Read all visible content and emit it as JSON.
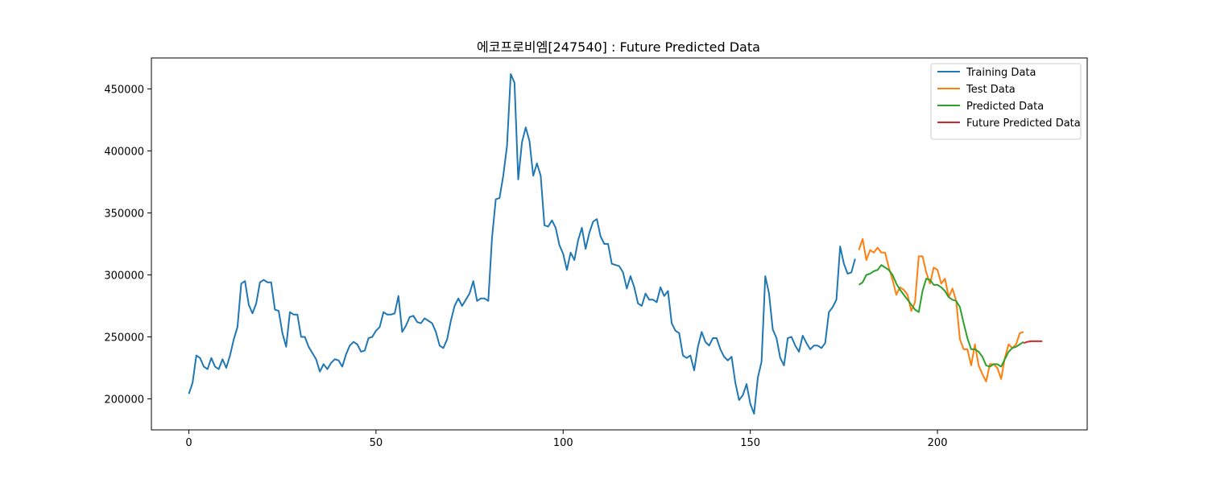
{
  "chart_data": {
    "type": "line",
    "title": "에코프로비엠[247540] : Future Predicted Data",
    "xlabel": "",
    "ylabel": "",
    "xlim": [
      -10,
      240
    ],
    "ylim": [
      175000,
      475000
    ],
    "xticks": [
      0,
      50,
      100,
      150,
      200
    ],
    "yticks": [
      200000,
      250000,
      300000,
      350000,
      400000,
      450000
    ],
    "grid": false,
    "legend_position": "top-right",
    "series": [
      {
        "name": "Training Data",
        "color": "#1f77b4",
        "x_start": 0,
        "values": [
          204000,
          213000,
          235000,
          233000,
          226000,
          224000,
          233000,
          226000,
          224000,
          232000,
          225000,
          235000,
          248000,
          258000,
          293000,
          295000,
          276000,
          269000,
          277000,
          294000,
          296000,
          294000,
          294000,
          272000,
          271000,
          253000,
          242000,
          270000,
          268000,
          268000,
          250000,
          250000,
          242000,
          237000,
          232000,
          222000,
          228000,
          224000,
          229000,
          232000,
          231000,
          226000,
          236000,
          243000,
          246000,
          244000,
          238000,
          239000,
          249000,
          250000,
          255000,
          258000,
          270000,
          268000,
          268000,
          269000,
          283000,
          254000,
          259000,
          266000,
          267000,
          262000,
          261000,
          265000,
          263000,
          261000,
          254000,
          243000,
          241000,
          248000,
          263000,
          275000,
          281000,
          275000,
          280000,
          285000,
          295000,
          279000,
          281000,
          281000,
          279000,
          330000,
          361000,
          362000,
          380000,
          404000,
          462000,
          455000,
          377000,
          407000,
          419000,
          408000,
          380000,
          390000,
          380000,
          340000,
          339000,
          344000,
          338000,
          324000,
          317000,
          304000,
          318000,
          312000,
          328000,
          338000,
          321000,
          334000,
          343000,
          345000,
          331000,
          325000,
          325000,
          309000,
          308000,
          307000,
          302000,
          289000,
          299000,
          290000,
          277000,
          275000,
          285000,
          280000,
          280000,
          278000,
          290000,
          283000,
          287000,
          261000,
          255000,
          253000,
          235000,
          233000,
          235000,
          223000,
          242000,
          254000,
          246000,
          243000,
          249000,
          249000,
          240000,
          234000,
          231000,
          234000,
          213000,
          199000,
          203000,
          212000,
          196000,
          188000,
          217000,
          230000,
          299000,
          285000,
          256000,
          249000,
          233000,
          227000,
          249000,
          250000,
          243000,
          238000,
          251000,
          245000,
          240000,
          243000,
          243000,
          241000,
          245000,
          270000,
          274000,
          280000,
          323000,
          309000,
          301000,
          302000,
          313000
        ]
      },
      {
        "name": "Test Data",
        "color": "#ff7f0e",
        "x_start": 179,
        "values": [
          320000,
          329000,
          312000,
          320000,
          318000,
          322000,
          318000,
          318000,
          306000,
          296000,
          284000,
          290000,
          288000,
          284000,
          271000,
          278000,
          315000,
          315000,
          302000,
          293000,
          306000,
          304000,
          293000,
          297000,
          282000,
          289000,
          279000,
          248000,
          240000,
          240000,
          227000,
          244000,
          227000,
          220000,
          214000,
          228000,
          228000,
          225000,
          216000,
          233000,
          244000,
          241000,
          244000,
          253000,
          254000
        ]
      },
      {
        "name": "Predicted Data",
        "color": "#2ca02c",
        "x_start": 179,
        "values": [
          292000,
          294000,
          300000,
          301000,
          303000,
          304000,
          308000,
          306000,
          304000,
          300000,
          293000,
          288000,
          284000,
          280000,
          276000,
          272000,
          270000,
          287000,
          297000,
          296000,
          292000,
          292000,
          290000,
          287000,
          282000,
          280000,
          279000,
          274000,
          261000,
          249000,
          240000,
          240000,
          238000,
          234000,
          227000,
          226000,
          228000,
          228000,
          226000,
          232000,
          238000,
          241000,
          242000,
          244000,
          246000
        ]
      },
      {
        "name": "Future Predicted Data",
        "color": "#d62728",
        "x_start": 223,
        "values": [
          245000,
          246000,
          246500,
          246500,
          246500,
          246500
        ]
      }
    ]
  }
}
